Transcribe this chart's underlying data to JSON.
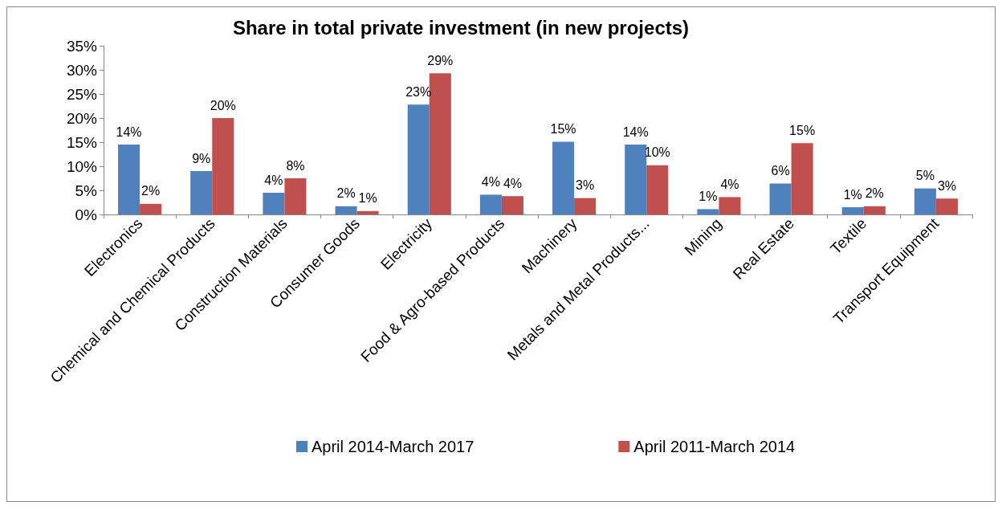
{
  "chart_data": {
    "type": "bar",
    "title": "Share in total private investment (in new projects)",
    "categories": [
      "Electronics",
      "Chemical and Chemical Products",
      "Construction Materials",
      "Consumer Goods",
      "Electricity",
      "Food & Agro-based Products",
      "Machinery",
      "Metals and Metal Products...",
      "Mining",
      "Real Estate",
      "Textile",
      "Transport Equipment"
    ],
    "series": [
      {
        "name": "April 2014-March 2017",
        "color": "#4f81bd",
        "values": [
          14.5,
          9,
          4.5,
          1.7,
          22.8,
          4.1,
          15.1,
          14.5,
          1.1,
          6.4,
          1.5,
          5.4
        ],
        "value_labels": [
          "14%",
          "9%",
          "4%",
          "2%",
          "23%",
          "4%",
          "15%",
          "14%",
          "1%",
          "6%",
          "1%",
          "5%"
        ]
      },
      {
        "name": "April 2011-March 2014",
        "color": "#c0504d",
        "values": [
          2.2,
          20,
          7.5,
          0.7,
          29.3,
          3.8,
          3.4,
          10.2,
          3.6,
          14.8,
          1.7,
          3.3
        ],
        "value_labels": [
          "2%",
          "20%",
          "8%",
          "1%",
          "29%",
          "4%",
          "3%",
          "10%",
          "4%",
          "15%",
          "2%",
          "3%"
        ]
      }
    ],
    "ylim": [
      0,
      35
    ],
    "yticks": [
      {
        "value": 0,
        "label": "0%"
      },
      {
        "value": 5,
        "label": "5%"
      },
      {
        "value": 10,
        "label": "10%"
      },
      {
        "value": 15,
        "label": "15%"
      },
      {
        "value": 20,
        "label": "20%"
      },
      {
        "value": 25,
        "label": "25%"
      },
      {
        "value": 30,
        "label": "30%"
      },
      {
        "value": 35,
        "label": "35%"
      }
    ],
    "grid": false,
    "legend": "bottom"
  }
}
